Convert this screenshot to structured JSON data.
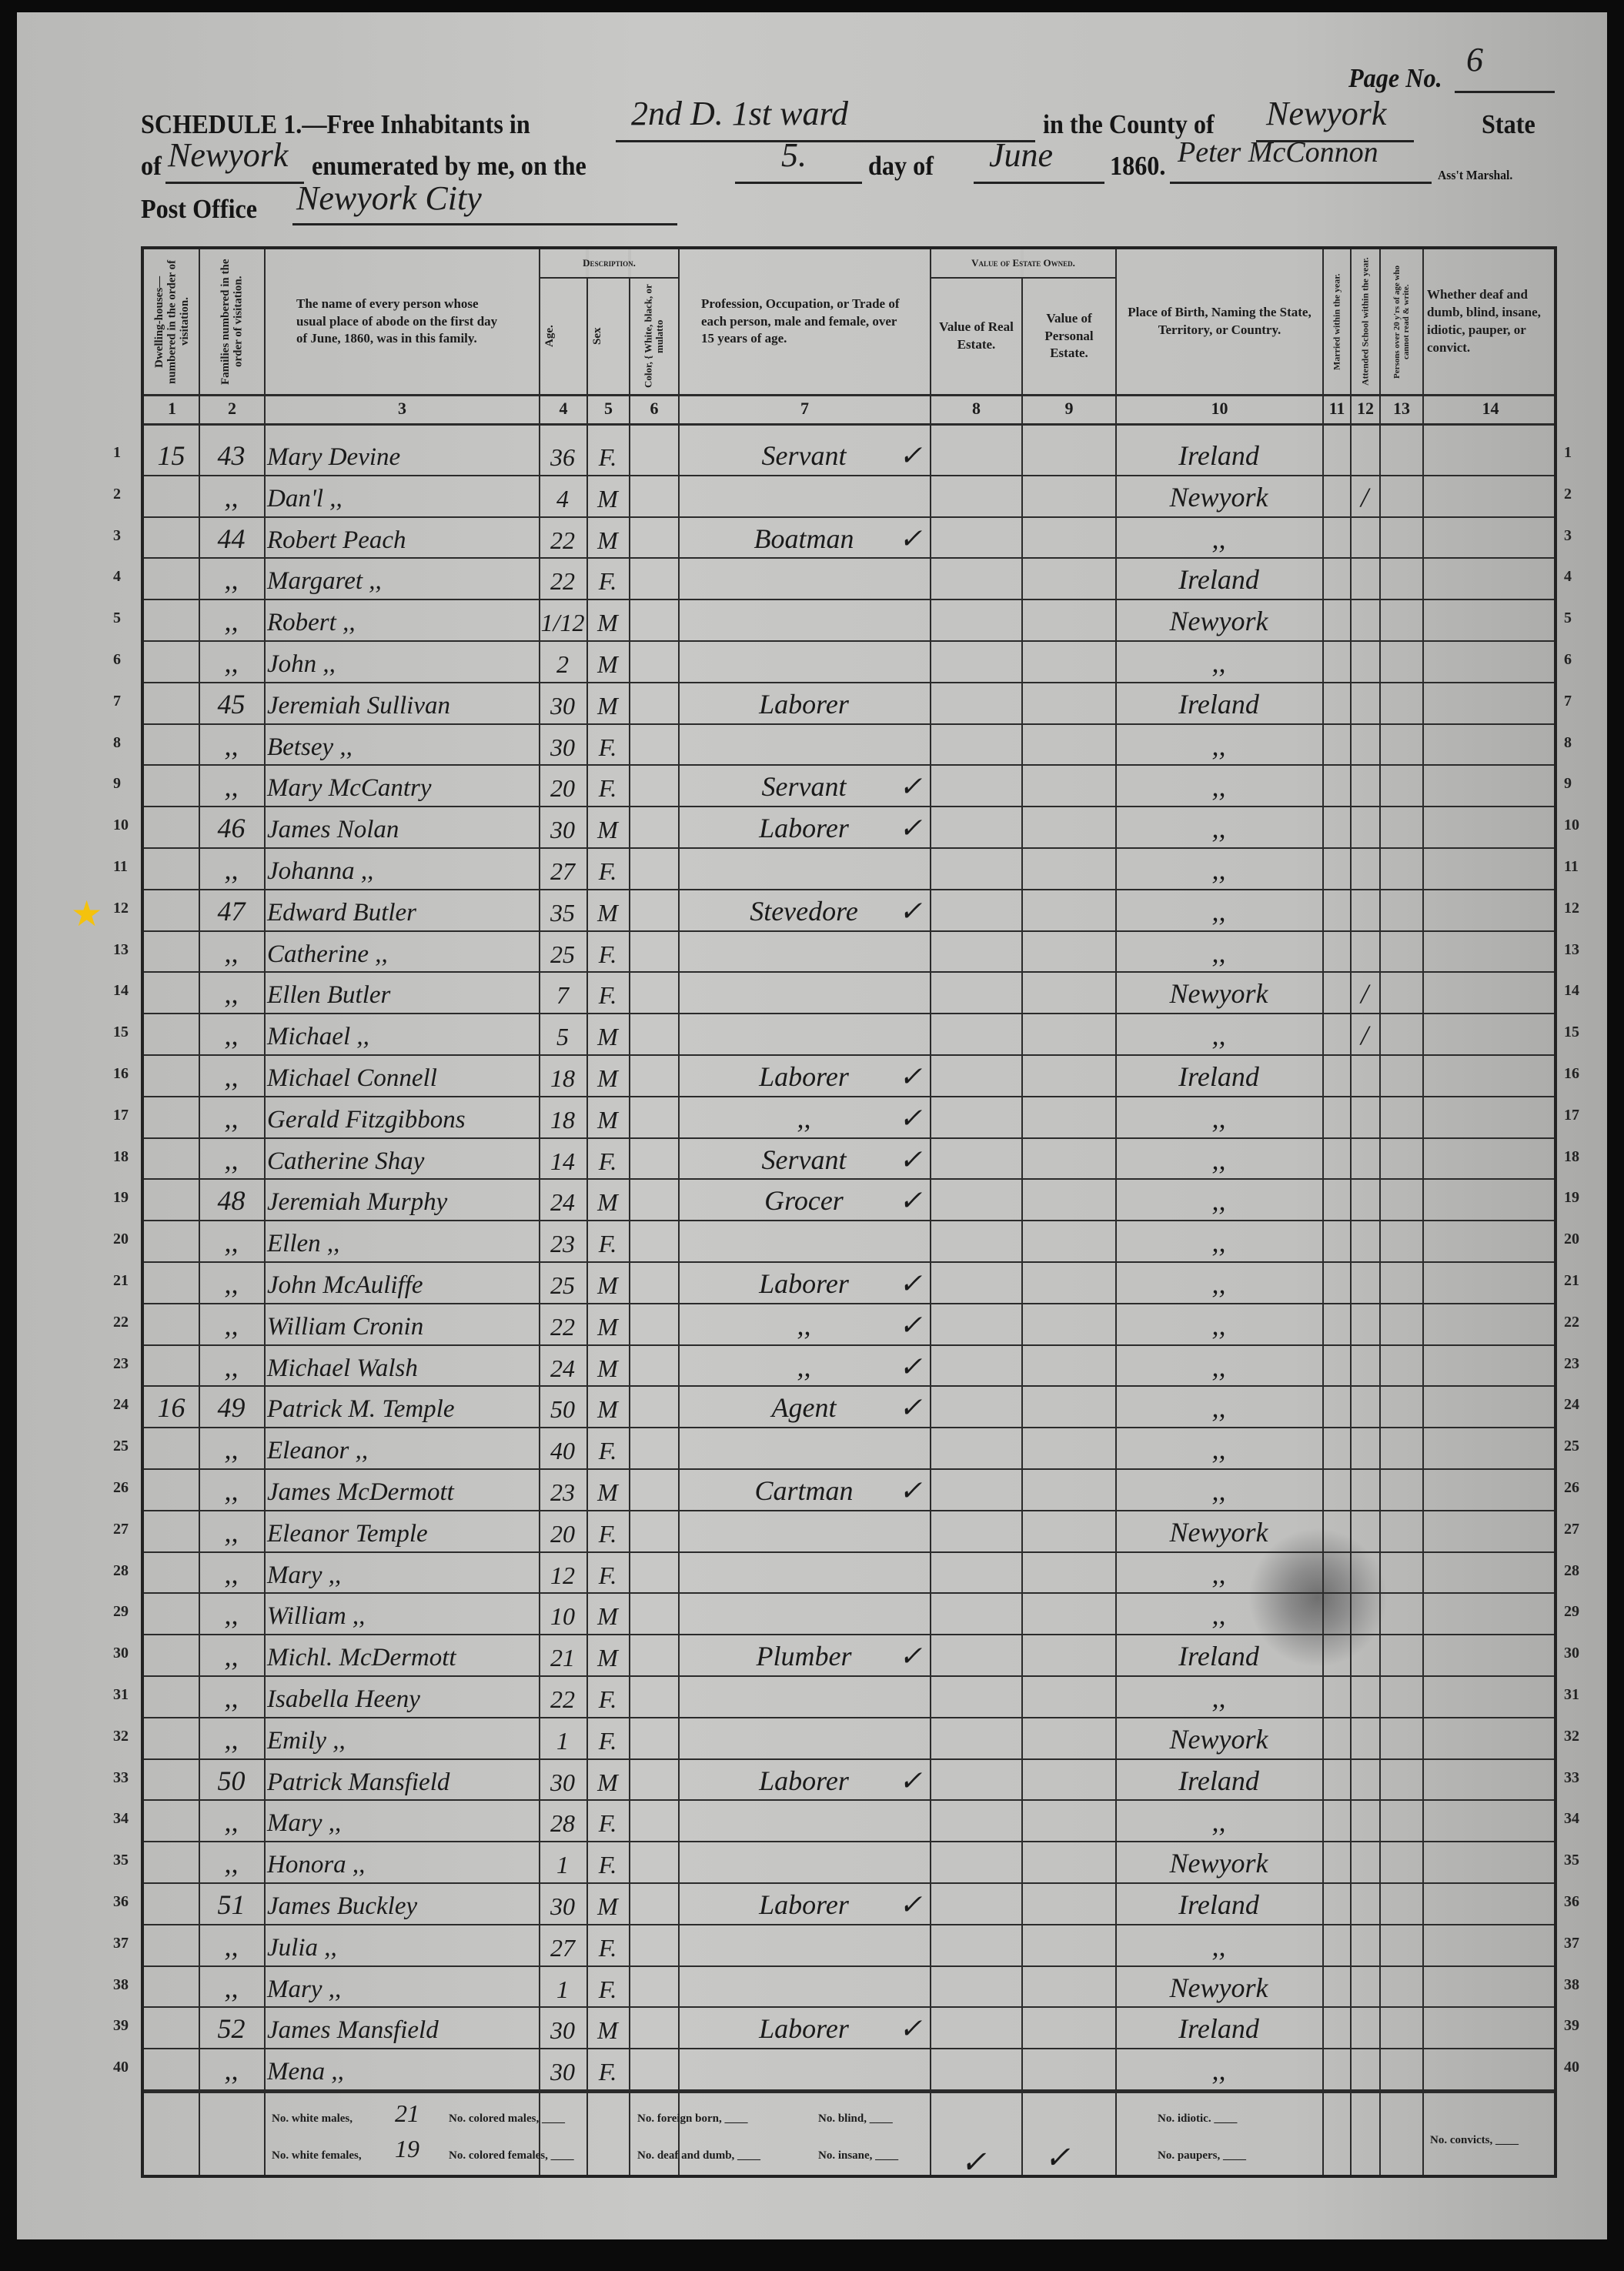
{
  "header": {
    "page_label": "Page No.",
    "page_no": "6",
    "schedule_label": "SCHEDULE 1.—Free Inhabitants in",
    "place": "2nd D. 1st ward",
    "county_label": "in the County of",
    "county": "Newyork",
    "state_label": "State",
    "of_label": "of",
    "state": "Newyork",
    "enumerated_label": "enumerated by me, on the",
    "day": "5.",
    "day_of_label": "day of",
    "month": "June",
    "year": "1860.",
    "marshal": "Peter McConnon",
    "marshal_label": "Ass't Marshal.",
    "post_office_label": "Post Office",
    "post_office": "Newyork City"
  },
  "columns": {
    "c1": "Dwelling-houses— numbered in the order of visitation.",
    "c2": "Families numbered in the order of visitation.",
    "c3": "The name of every person whose usual place of abode on the first day of June, 1860, was in this family.",
    "description": "Description.",
    "c4": "Age.",
    "c5": "Sex",
    "c6": "Color, { White, black, or mulatto",
    "c7": "Profession, Occupation, or Trade of each person, male and female, over 15 years of age.",
    "estate": "Value of Estate Owned.",
    "c8": "Value of Real Estate.",
    "c9": "Value of Personal Estate.",
    "c10": "Place of Birth, Naming the State, Territory, or Country.",
    "c11": "Married within the year.",
    "c12": "Attended School within the year.",
    "c13": "Persons over 20 y'rs of age who cannot read & write.",
    "c14": "Whether deaf and dumb, blind, insane, idiotic, pauper, or convict.",
    "numbers": [
      "1",
      "2",
      "3",
      "4",
      "5",
      "6",
      "7",
      "8",
      "9",
      "10",
      "11",
      "12",
      "13",
      "14"
    ]
  },
  "rows": [
    {
      "n": "1",
      "dw": "15",
      "fam": "43",
      "name": "Mary Devine",
      "age": "36",
      "sex": "F.",
      "occ": "Servant",
      "chk": "✓",
      "birth": "Ireland",
      "school": ""
    },
    {
      "n": "2",
      "dw": "",
      "fam": ",,",
      "name": "Dan'l  ,,",
      "age": "4",
      "sex": "M",
      "occ": "",
      "chk": "",
      "birth": "Newyork",
      "school": "/"
    },
    {
      "n": "3",
      "dw": "",
      "fam": "44",
      "name": "Robert Peach",
      "age": "22",
      "sex": "M",
      "occ": "Boatman",
      "chk": "✓",
      "birth": ",,",
      "school": ""
    },
    {
      "n": "4",
      "dw": "",
      "fam": ",,",
      "name": "Margaret  ,,",
      "age": "22",
      "sex": "F.",
      "occ": "",
      "chk": "",
      "birth": "Ireland",
      "school": ""
    },
    {
      "n": "5",
      "dw": "",
      "fam": ",,",
      "name": "Robert  ,,",
      "age": "1/12",
      "sex": "M",
      "occ": "",
      "chk": "",
      "birth": "Newyork",
      "school": ""
    },
    {
      "n": "6",
      "dw": "",
      "fam": ",,",
      "name": "John  ,,",
      "age": "2",
      "sex": "M",
      "occ": "",
      "chk": "",
      "birth": ",,",
      "school": ""
    },
    {
      "n": "7",
      "dw": "",
      "fam": "45",
      "name": "Jeremiah Sullivan",
      "age": "30",
      "sex": "M",
      "occ": "Laborer",
      "chk": "",
      "birth": "Ireland",
      "school": ""
    },
    {
      "n": "8",
      "dw": "",
      "fam": ",,",
      "name": "Betsey  ,,",
      "age": "30",
      "sex": "F.",
      "occ": "",
      "chk": "",
      "birth": ",,",
      "school": ""
    },
    {
      "n": "9",
      "dw": "",
      "fam": ",,",
      "name": "Mary McCantry",
      "age": "20",
      "sex": "F.",
      "occ": "Servant",
      "chk": "✓",
      "birth": ",,",
      "school": ""
    },
    {
      "n": "10",
      "dw": "",
      "fam": "46",
      "name": "James Nolan",
      "age": "30",
      "sex": "M",
      "occ": "Laborer",
      "chk": "✓",
      "birth": ",,",
      "school": ""
    },
    {
      "n": "11",
      "dw": "",
      "fam": ",,",
      "name": "Johanna  ,,",
      "age": "27",
      "sex": "F.",
      "occ": "",
      "chk": "",
      "birth": ",,",
      "school": ""
    },
    {
      "n": "12",
      "dw": "",
      "fam": "47",
      "name": "Edward Butler",
      "age": "35",
      "sex": "M",
      "occ": "Stevedore",
      "chk": "✓",
      "birth": ",,",
      "school": ""
    },
    {
      "n": "13",
      "dw": "",
      "fam": ",,",
      "name": "Catherine  ,,",
      "age": "25",
      "sex": "F.",
      "occ": "",
      "chk": "",
      "birth": ",,",
      "school": ""
    },
    {
      "n": "14",
      "dw": "",
      "fam": ",,",
      "name": "Ellen Butler",
      "age": "7",
      "sex": "F.",
      "occ": "",
      "chk": "",
      "birth": "Newyork",
      "school": "/"
    },
    {
      "n": "15",
      "dw": "",
      "fam": ",,",
      "name": "Michael  ,,",
      "age": "5",
      "sex": "M",
      "occ": "",
      "chk": "",
      "birth": ",,",
      "school": "/"
    },
    {
      "n": "16",
      "dw": "",
      "fam": ",,",
      "name": "Michael Connell",
      "age": "18",
      "sex": "M",
      "occ": "Laborer",
      "chk": "✓",
      "birth": "Ireland",
      "school": ""
    },
    {
      "n": "17",
      "dw": "",
      "fam": ",,",
      "name": "Gerald Fitzgibbons",
      "age": "18",
      "sex": "M",
      "occ": ",,",
      "chk": "✓",
      "birth": ",,",
      "school": ""
    },
    {
      "n": "18",
      "dw": "",
      "fam": ",,",
      "name": "Catherine Shay",
      "age": "14",
      "sex": "F.",
      "occ": "Servant",
      "chk": "✓",
      "birth": ",,",
      "school": ""
    },
    {
      "n": "19",
      "dw": "",
      "fam": "48",
      "name": "Jeremiah Murphy",
      "age": "24",
      "sex": "M",
      "occ": "Grocer",
      "chk": "✓",
      "birth": ",,",
      "school": ""
    },
    {
      "n": "20",
      "dw": "",
      "fam": ",,",
      "name": "Ellen  ,,",
      "age": "23",
      "sex": "F.",
      "occ": "",
      "chk": "",
      "birth": ",,",
      "school": ""
    },
    {
      "n": "21",
      "dw": "",
      "fam": ",,",
      "name": "John McAuliffe",
      "age": "25",
      "sex": "M",
      "occ": "Laborer",
      "chk": "✓",
      "birth": ",,",
      "school": ""
    },
    {
      "n": "22",
      "dw": "",
      "fam": ",,",
      "name": "William Cronin",
      "age": "22",
      "sex": "M",
      "occ": ",,",
      "chk": "✓",
      "birth": ",,",
      "school": ""
    },
    {
      "n": "23",
      "dw": "",
      "fam": ",,",
      "name": "Michael Walsh",
      "age": "24",
      "sex": "M",
      "occ": ",,",
      "chk": "✓",
      "birth": ",,",
      "school": ""
    },
    {
      "n": "24",
      "dw": "16",
      "fam": "49",
      "name": "Patrick M. Temple",
      "age": "50",
      "sex": "M",
      "occ": "Agent",
      "chk": "✓",
      "birth": ",,",
      "school": ""
    },
    {
      "n": "25",
      "dw": "",
      "fam": ",,",
      "name": "Eleanor  ,,",
      "age": "40",
      "sex": "F.",
      "occ": "",
      "chk": "",
      "birth": ",,",
      "school": ""
    },
    {
      "n": "26",
      "dw": "",
      "fam": ",,",
      "name": "James McDermott",
      "age": "23",
      "sex": "M",
      "occ": "Cartman",
      "chk": "✓",
      "birth": ",,",
      "school": ""
    },
    {
      "n": "27",
      "dw": "",
      "fam": ",,",
      "name": "Eleanor Temple",
      "age": "20",
      "sex": "F.",
      "occ": "",
      "chk": "",
      "birth": "Newyork",
      "school": ""
    },
    {
      "n": "28",
      "dw": "",
      "fam": ",,",
      "name": "Mary  ,,",
      "age": "12",
      "sex": "F.",
      "occ": "",
      "chk": "",
      "birth": ",,",
      "school": ""
    },
    {
      "n": "29",
      "dw": "",
      "fam": ",,",
      "name": "William  ,,",
      "age": "10",
      "sex": "M",
      "occ": "",
      "chk": "",
      "birth": ",,",
      "school": ""
    },
    {
      "n": "30",
      "dw": "",
      "fam": ",,",
      "name": "Michl. McDermott",
      "age": "21",
      "sex": "M",
      "occ": "Plumber",
      "chk": "✓",
      "birth": "Ireland",
      "school": ""
    },
    {
      "n": "31",
      "dw": "",
      "fam": ",,",
      "name": "Isabella Heeny",
      "age": "22",
      "sex": "F.",
      "occ": "",
      "chk": "",
      "birth": ",,",
      "school": ""
    },
    {
      "n": "32",
      "dw": "",
      "fam": ",,",
      "name": "Emily  ,,",
      "age": "1",
      "sex": "F.",
      "occ": "",
      "chk": "",
      "birth": "Newyork",
      "school": ""
    },
    {
      "n": "33",
      "dw": "",
      "fam": "50",
      "name": "Patrick Mansfield",
      "age": "30",
      "sex": "M",
      "occ": "Laborer",
      "chk": "✓",
      "birth": "Ireland",
      "school": ""
    },
    {
      "n": "34",
      "dw": "",
      "fam": ",,",
      "name": "Mary  ,,",
      "age": "28",
      "sex": "F.",
      "occ": "",
      "chk": "",
      "birth": ",,",
      "school": ""
    },
    {
      "n": "35",
      "dw": "",
      "fam": ",,",
      "name": "Honora  ,,",
      "age": "1",
      "sex": "F.",
      "occ": "",
      "chk": "",
      "birth": "Newyork",
      "school": ""
    },
    {
      "n": "36",
      "dw": "",
      "fam": "51",
      "name": "James Buckley",
      "age": "30",
      "sex": "M",
      "occ": "Laborer",
      "chk": "✓",
      "birth": "Ireland",
      "school": ""
    },
    {
      "n": "37",
      "dw": "",
      "fam": ",,",
      "name": "Julia  ,,",
      "age": "27",
      "sex": "F.",
      "occ": "",
      "chk": "",
      "birth": ",,",
      "school": ""
    },
    {
      "n": "38",
      "dw": "",
      "fam": ",,",
      "name": "Mary  ,,",
      "age": "1",
      "sex": "F.",
      "occ": "",
      "chk": "",
      "birth": "Newyork",
      "school": ""
    },
    {
      "n": "39",
      "dw": "",
      "fam": "52",
      "name": "James Mansfield",
      "age": "30",
      "sex": "M",
      "occ": "Laborer",
      "chk": "✓",
      "birth": "Ireland",
      "school": ""
    },
    {
      "n": "40",
      "dw": "",
      "fam": ",,",
      "name": "Mena  ,,",
      "age": "30",
      "sex": "F.",
      "occ": "",
      "chk": "",
      "birth": ",,",
      "school": ""
    }
  ],
  "footer": {
    "white_males_label": "No. white males,",
    "white_males": "21",
    "white_females_label": "No. white females,",
    "white_females": "19",
    "colored_males": "No. colored males, ____",
    "colored_females": "No. colored females, ____",
    "foreign_born": "No. foreign born, ____",
    "deaf_dumb": "No. deaf and dumb, ____",
    "blind": "No. blind, ____",
    "insane": "No. insane, ____",
    "check8": "✓",
    "check9": "✓",
    "idiotic": "No. idiotic. ____",
    "paupers": "No. paupers, ____",
    "convicts": "No. convicts, ____"
  },
  "marker": {
    "icon": "star-icon",
    "row": "12",
    "color": "#f4c20d"
  }
}
